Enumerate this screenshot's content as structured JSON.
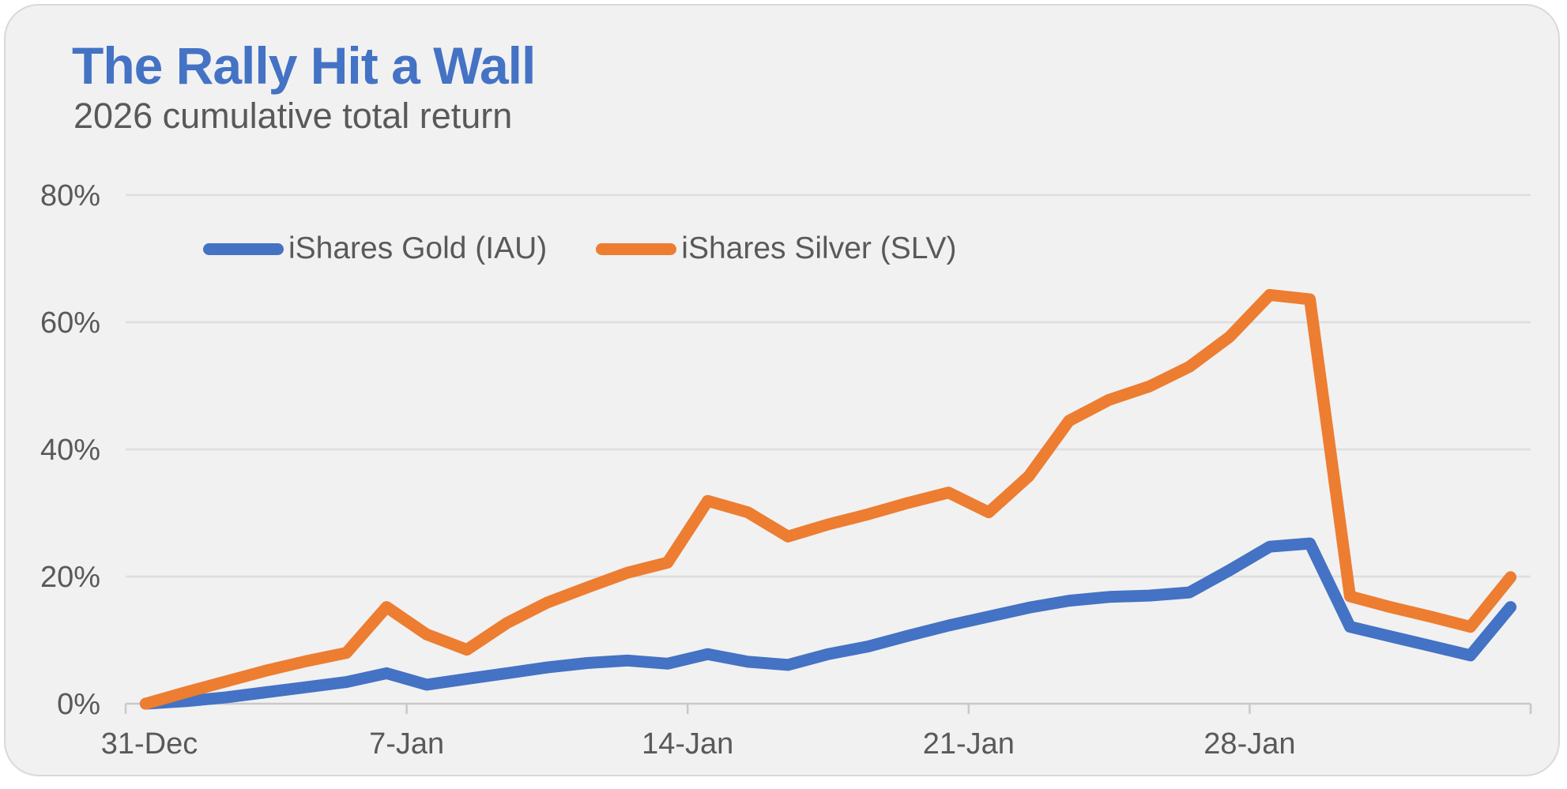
{
  "title": {
    "text": "The Rally Hit a Wall",
    "color": "#4472C4"
  },
  "subtitle": {
    "text": "2026 cumulative total return",
    "color": "#595959"
  },
  "colors": {
    "card_background": "#F1F1F1",
    "page_background": "#FFFFFF",
    "card_border": "#D9D9D9",
    "grid": "#DEDEDE",
    "axis": "#C9C9C9",
    "text": "#595959",
    "gold_series": "#4472C4",
    "silver_series": "#ED7D31"
  },
  "legend": {
    "entries": [
      {
        "label": "iShares Gold (IAU)",
        "color": "#4472C4"
      },
      {
        "label": "iShares Silver (SLV)",
        "color": "#ED7D31"
      }
    ]
  },
  "chart_data": {
    "type": "line",
    "title": "The Rally Hit a Wall",
    "subtitle": "2026 cumulative total return",
    "xlabel": "",
    "ylabel": "",
    "ylim": [
      0,
      80
    ],
    "grid": true,
    "legend_position": "top-center",
    "ytick_values": [
      0,
      20,
      40,
      60,
      80
    ],
    "ytick_labels": [
      "0%",
      "20%",
      "40%",
      "60%",
      "80%"
    ],
    "xtick_labels": [
      "31-Dec",
      "7-Jan",
      "14-Jan",
      "21-Jan",
      "28-Jan"
    ],
    "xtick_every": 7,
    "x": [
      "31-Dec",
      "1-Jan",
      "2-Jan",
      "3-Jan",
      "4-Jan",
      "5-Jan",
      "6-Jan",
      "7-Jan",
      "8-Jan",
      "9-Jan",
      "10-Jan",
      "11-Jan",
      "12-Jan",
      "13-Jan",
      "14-Jan",
      "15-Jan",
      "16-Jan",
      "17-Jan",
      "18-Jan",
      "19-Jan",
      "20-Jan",
      "21-Jan",
      "22-Jan",
      "23-Jan",
      "24-Jan",
      "25-Jan",
      "26-Jan",
      "27-Jan",
      "28-Jan",
      "29-Jan",
      "30-Jan",
      "31-Jan",
      "1-Feb",
      "2-Feb",
      "3-Feb"
    ],
    "series": [
      {
        "name": "iShares Gold (IAU)",
        "color": "#4472C4",
        "values": [
          0,
          0.4,
          1.0,
          1.8,
          2.6,
          3.4,
          4.8,
          3.0,
          3.9,
          4.8,
          5.7,
          6.4,
          6.8,
          6.3,
          7.8,
          6.6,
          6.1,
          7.8,
          9.0,
          10.7,
          12.3,
          13.7,
          15.1,
          16.2,
          16.8,
          17.0,
          17.5,
          21.0,
          24.7,
          25.2,
          12.1,
          10.6,
          9.1,
          7.6,
          15.2
        ]
      },
      {
        "name": "iShares Silver (SLV)",
        "color": "#ED7D31",
        "values": [
          0,
          1.8,
          3.5,
          5.2,
          6.7,
          8.0,
          15.2,
          10.9,
          8.5,
          12.7,
          15.9,
          18.3,
          20.6,
          22.2,
          31.9,
          30.1,
          26.3,
          28.2,
          29.8,
          31.6,
          33.2,
          30.1,
          35.8,
          44.5,
          47.8,
          49.9,
          53.0,
          57.7,
          64.3,
          63.6,
          16.9,
          15.2,
          13.7,
          12.1,
          19.9
        ]
      }
    ]
  }
}
